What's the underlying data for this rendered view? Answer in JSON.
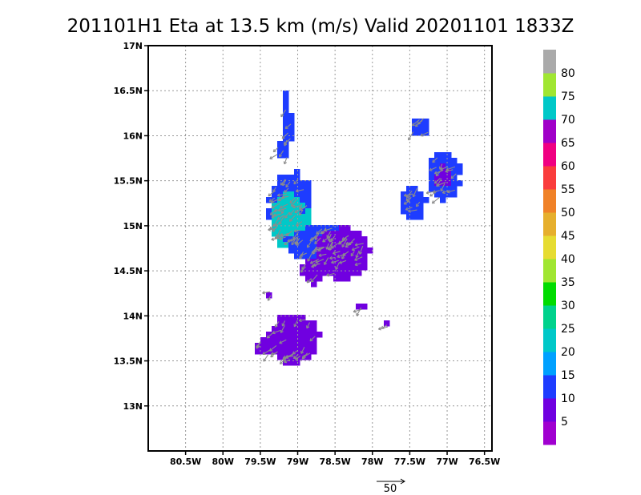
{
  "chart_data": {
    "type": "heatmap",
    "title": "201101H1 Eta at 13.5 km (m/s) Valid 20201101 1833Z",
    "variable": "Wind speed with wind vectors",
    "units": "m/s",
    "xlim": [
      -81.0,
      -76.4
    ],
    "ylim": [
      12.5,
      17.0
    ],
    "x_ticks": [
      {
        "value": -80.5,
        "label": "80.5W"
      },
      {
        "value": -80.0,
        "label": "80W"
      },
      {
        "value": -79.5,
        "label": "79.5W"
      },
      {
        "value": -79.0,
        "label": "79W"
      },
      {
        "value": -78.5,
        "label": "78.5W"
      },
      {
        "value": -78.0,
        "label": "78W"
      },
      {
        "value": -77.5,
        "label": "77.5W"
      },
      {
        "value": -77.0,
        "label": "77W"
      },
      {
        "value": -76.5,
        "label": "76.5W"
      }
    ],
    "y_ticks": [
      {
        "value": 13.0,
        "label": "13N"
      },
      {
        "value": 13.5,
        "label": "13.5N"
      },
      {
        "value": 14.0,
        "label": "14N"
      },
      {
        "value": 14.5,
        "label": "14.5N"
      },
      {
        "value": 15.0,
        "label": "15N"
      },
      {
        "value": 15.5,
        "label": "15.5N"
      },
      {
        "value": 16.0,
        "label": "16N"
      },
      {
        "value": 16.5,
        "label": "16.5N"
      },
      {
        "value": 17.0,
        "label": "17N"
      }
    ],
    "grid": true,
    "colorbar": {
      "placement": "right",
      "colors": [
        "#a000d0",
        "#7000e0",
        "#1e3cff",
        "#00a0ff",
        "#00c8c8",
        "#00d28c",
        "#00dc00",
        "#a0e632",
        "#e6dc32",
        "#e6af2d",
        "#f08228",
        "#fa3c3c",
        "#f00082",
        "#a000c8",
        "#00c8c8",
        "#a0e632",
        "#aaaaaa"
      ],
      "labels": [
        "5",
        "10",
        "15",
        "20",
        "25",
        "30",
        "35",
        "40",
        "45",
        "50",
        "55",
        "60",
        "65",
        "70",
        "75",
        "80"
      ]
    },
    "regions": [
      {
        "name": "north-spike",
        "lon": -79.15,
        "lat": 16.1,
        "rx": 0.07,
        "ry": 0.4,
        "level": 2
      },
      {
        "name": "north-spike-tip",
        "lon": -79.25,
        "lat": 15.85,
        "rx": 0.06,
        "ry": 0.08,
        "level": 2
      },
      {
        "name": "central-west-blue",
        "lon": -79.1,
        "lat": 15.2,
        "rx": 0.3,
        "ry": 0.4,
        "level": 2
      },
      {
        "name": "central-west-core",
        "lon": -79.1,
        "lat": 15.05,
        "rx": 0.25,
        "ry": 0.32,
        "level": 4
      },
      {
        "name": "central-band",
        "lon": -78.6,
        "lat": 14.8,
        "rx": 0.55,
        "ry": 0.2,
        "level": 2
      },
      {
        "name": "central-east-purple",
        "lon": -78.4,
        "lat": 14.7,
        "rx": 0.35,
        "ry": 0.28,
        "level": 1
      },
      {
        "name": "central-south-purple",
        "lon": -78.8,
        "lat": 14.5,
        "rx": 0.15,
        "ry": 0.15,
        "level": 1
      },
      {
        "name": "south-cluster",
        "lon": -79.05,
        "lat": 13.75,
        "rx": 0.35,
        "ry": 0.28,
        "level": 1
      },
      {
        "name": "south-cluster-west",
        "lon": -79.4,
        "lat": 13.65,
        "rx": 0.18,
        "ry": 0.1,
        "level": 1
      },
      {
        "name": "ne-top",
        "lon": -77.35,
        "lat": 16.1,
        "rx": 0.14,
        "ry": 0.13,
        "level": 2
      },
      {
        "name": "ne-east",
        "lon": -77.05,
        "lat": 15.55,
        "rx": 0.22,
        "ry": 0.28,
        "level": 2
      },
      {
        "name": "ne-east-core",
        "lon": -77.05,
        "lat": 15.55,
        "rx": 0.1,
        "ry": 0.12,
        "level": 1
      },
      {
        "name": "ne-west",
        "lon": -77.45,
        "lat": 15.25,
        "rx": 0.17,
        "ry": 0.2,
        "level": 2
      },
      {
        "name": "small-speck-1",
        "lon": -78.95,
        "lat": 15.15,
        "rx": 0.05,
        "ry": 0.05,
        "level": 2
      },
      {
        "name": "small-speck-2",
        "lon": -78.15,
        "lat": 14.1,
        "rx": 0.04,
        "ry": 0.04,
        "level": 1
      },
      {
        "name": "small-speck-3",
        "lon": -77.8,
        "lat": 13.9,
        "rx": 0.03,
        "ry": 0.03,
        "level": 1
      },
      {
        "name": "small-speck-4",
        "lon": -79.35,
        "lat": 14.25,
        "rx": 0.04,
        "ry": 0.04,
        "level": 1
      }
    ],
    "reference_vector": {
      "label": "50"
    }
  }
}
